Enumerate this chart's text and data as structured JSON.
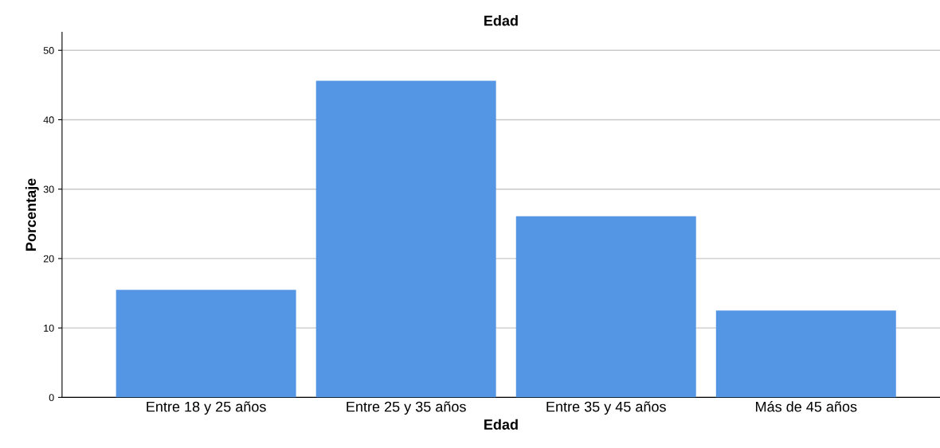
{
  "chart_data": {
    "type": "bar",
    "title": "Edad",
    "xlabel": "Edad",
    "ylabel": "Porcentaje",
    "categories": [
      "Entre 18 y 25 años",
      "Entre 25 y 35 años",
      "Entre 35 y 45 años",
      "Más de 45 años"
    ],
    "values": [
      15.5,
      45.6,
      26.1,
      12.5
    ],
    "color": "#5596e4",
    "ylim": [
      0,
      52.6
    ],
    "yticks": [
      0,
      10,
      20,
      30,
      40,
      50
    ],
    "grid": "y"
  }
}
